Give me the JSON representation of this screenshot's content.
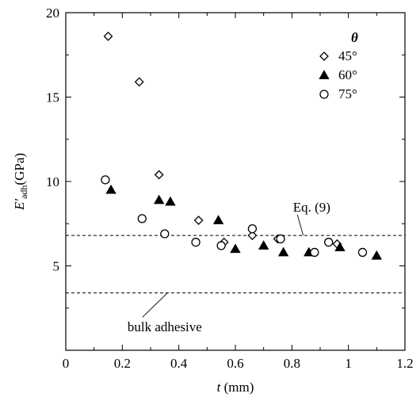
{
  "chart_data": {
    "type": "scatter",
    "xlabel": {
      "var": "t",
      "unit": " (mm)"
    },
    "ylabel": {
      "var": "E′",
      "sub": "adh",
      "unit": "(GPa)"
    },
    "xlim": [
      0,
      1.2
    ],
    "ylim": [
      0,
      20
    ],
    "xticks": [
      0,
      0.2,
      0.4,
      0.6,
      0.8,
      1,
      1.2
    ],
    "xtick_labels": [
      "0",
      "0.2",
      "0.4",
      "0.6",
      "0.8",
      "1",
      "1.2"
    ],
    "yticks": [
      5,
      10,
      15,
      20
    ],
    "ytick_labels": [
      "5",
      "10",
      "15",
      "20"
    ],
    "grid": false,
    "legend": {
      "title": "θ",
      "position": "top-right"
    },
    "series": [
      {
        "name": "45°",
        "marker": "diamond-open",
        "points": [
          [
            0.15,
            18.6
          ],
          [
            0.26,
            15.9
          ],
          [
            0.33,
            10.4
          ],
          [
            0.47,
            7.7
          ],
          [
            0.56,
            6.4
          ],
          [
            0.66,
            6.8
          ],
          [
            0.75,
            6.6
          ],
          [
            0.96,
            6.3
          ]
        ]
      },
      {
        "name": "60°",
        "marker": "triangle-filled",
        "points": [
          [
            0.16,
            9.5
          ],
          [
            0.33,
            8.9
          ],
          [
            0.37,
            8.8
          ],
          [
            0.54,
            7.7
          ],
          [
            0.6,
            6.0
          ],
          [
            0.7,
            6.2
          ],
          [
            0.77,
            5.8
          ],
          [
            0.86,
            5.8
          ],
          [
            0.97,
            6.1
          ],
          [
            1.1,
            5.6
          ]
        ]
      },
      {
        "name": "75°",
        "marker": "circle-open",
        "points": [
          [
            0.14,
            10.1
          ],
          [
            0.27,
            7.8
          ],
          [
            0.35,
            6.9
          ],
          [
            0.46,
            6.4
          ],
          [
            0.55,
            6.2
          ],
          [
            0.66,
            7.2
          ],
          [
            0.76,
            6.6
          ],
          [
            0.88,
            5.8
          ],
          [
            0.93,
            6.4
          ],
          [
            1.05,
            5.8
          ]
        ]
      }
    ],
    "reference_lines": [
      {
        "y": 6.8,
        "label": "Eq. (9)",
        "label_at": [
          0.87,
          8.5
        ],
        "pointer_to": [
          0.84,
          6.8
        ]
      },
      {
        "y": 3.4,
        "label": "bulk adhesive",
        "label_at": [
          0.35,
          1.4
        ],
        "pointer_to": [
          0.36,
          3.4
        ]
      }
    ]
  }
}
